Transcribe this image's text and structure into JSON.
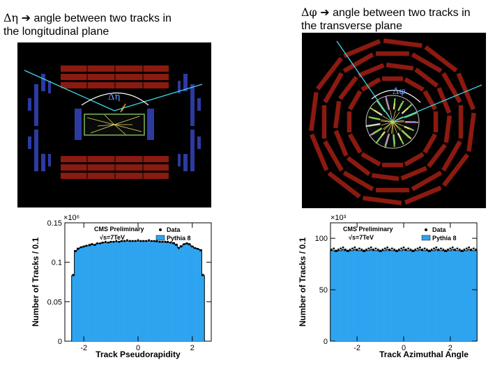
{
  "captions": {
    "left": {
      "symbol": "Δη",
      "arrow": "➔",
      "line1": "angle between two tracks in",
      "line2": "the longitudinal  plane"
    },
    "right": {
      "symbol": "Δφ",
      "arrow": "➔",
      "line1": "angle between two tracks in",
      "line2": "the transverse plane"
    }
  },
  "event_displays": {
    "left": {
      "angle_label": "Δη"
    },
    "right": {
      "angle_label": "Δφ"
    }
  },
  "chart_data": [
    {
      "type": "bar",
      "title": "",
      "xlabel": "Track Pseudorapidity",
      "ylabel": "Number of Tracks / 0.1",
      "y_multiplier_label": "×10⁶",
      "xlim": [
        -2.7,
        2.7
      ],
      "ylim": [
        0,
        0.15
      ],
      "x_ticks": [
        -2,
        0,
        2
      ],
      "y_ticks": [
        0,
        0.05,
        0.1,
        0.15
      ],
      "y_tick_labels": [
        "0",
        "0.05",
        "0.1",
        "0.15"
      ],
      "annotation_line1": "CMS Preliminary",
      "annotation_line2": "√s=7TeV",
      "legend_position": "top-right",
      "legend": [
        "Data",
        "Pythia 8"
      ],
      "x": [
        -2.4,
        -2.3,
        -2.2,
        -2.1,
        -2.0,
        -1.9,
        -1.8,
        -1.7,
        -1.6,
        -1.5,
        -1.4,
        -1.3,
        -1.2,
        -1.1,
        -1.0,
        -0.9,
        -0.8,
        -0.7,
        -0.6,
        -0.5,
        -0.4,
        -0.3,
        -0.2,
        -0.1,
        0.0,
        0.1,
        0.2,
        0.3,
        0.4,
        0.5,
        0.6,
        0.7,
        0.8,
        0.9,
        1.0,
        1.1,
        1.2,
        1.3,
        1.4,
        1.5,
        1.6,
        1.7,
        1.8,
        1.9,
        2.0,
        2.1,
        2.2,
        2.3,
        2.4
      ],
      "series": [
        {
          "name": "Pythia 8",
          "values": [
            0.083,
            0.115,
            0.118,
            0.119,
            0.12,
            0.121,
            0.121,
            0.123,
            0.122,
            0.124,
            0.124,
            0.125,
            0.125,
            0.125,
            0.126,
            0.126,
            0.126,
            0.126,
            0.127,
            0.127,
            0.127,
            0.127,
            0.127,
            0.127,
            0.127,
            0.127,
            0.127,
            0.127,
            0.127,
            0.127,
            0.127,
            0.126,
            0.126,
            0.126,
            0.126,
            0.125,
            0.125,
            0.125,
            0.123,
            0.119,
            0.121,
            0.123,
            0.124,
            0.122,
            0.12,
            0.118,
            0.117,
            0.116,
            0.083
          ]
        },
        {
          "name": "Data",
          "values": [
            0.084,
            0.114,
            0.117,
            0.119,
            0.12,
            0.121,
            0.122,
            0.123,
            0.122,
            0.124,
            0.124,
            0.125,
            0.126,
            0.125,
            0.126,
            0.126,
            0.127,
            0.126,
            0.127,
            0.127,
            0.128,
            0.127,
            0.127,
            0.127,
            0.128,
            0.127,
            0.127,
            0.127,
            0.128,
            0.127,
            0.127,
            0.127,
            0.126,
            0.126,
            0.126,
            0.126,
            0.125,
            0.124,
            0.122,
            0.118,
            0.12,
            0.123,
            0.124,
            0.123,
            0.12,
            0.118,
            0.117,
            0.115,
            0.084
          ]
        }
      ]
    },
    {
      "type": "bar",
      "title": "",
      "xlabel": "Track Azimuthal Angle",
      "ylabel": "Number of Tracks / 0.1",
      "y_multiplier_label": "×10³",
      "xlim": [
        -3.14159,
        3.14159
      ],
      "ylim": [
        0,
        115
      ],
      "x_ticks": [
        -2,
        0,
        2
      ],
      "y_ticks": [
        0,
        50,
        100
      ],
      "y_tick_labels": [
        "0",
        "50",
        "100"
      ],
      "annotation_line1": "CMS Preliminary",
      "annotation_line2": "√s=7TeV",
      "legend_position": "top-right",
      "legend": [
        "Data",
        "Pythia 8"
      ],
      "x": [
        -3.1,
        -3.0,
        -2.9,
        -2.8,
        -2.7,
        -2.6,
        -2.5,
        -2.4,
        -2.3,
        -2.2,
        -2.1,
        -2.0,
        -1.9,
        -1.8,
        -1.7,
        -1.6,
        -1.5,
        -1.4,
        -1.3,
        -1.2,
        -1.1,
        -1.0,
        -0.9,
        -0.8,
        -0.7,
        -0.6,
        -0.5,
        -0.4,
        -0.3,
        -0.2,
        -0.1,
        0.0,
        0.1,
        0.2,
        0.3,
        0.4,
        0.5,
        0.6,
        0.7,
        0.8,
        0.9,
        1.0,
        1.1,
        1.2,
        1.3,
        1.4,
        1.5,
        1.6,
        1.7,
        1.8,
        1.9,
        2.0,
        2.1,
        2.2,
        2.3,
        2.4,
        2.5,
        2.6,
        2.7,
        2.8,
        2.9,
        3.0,
        3.1
      ],
      "series": [
        {
          "name": "Pythia 8",
          "values": [
            88,
            88,
            87,
            88,
            88,
            89,
            88,
            87,
            88,
            88,
            89,
            88,
            88,
            88,
            87,
            88,
            88,
            89,
            88,
            88,
            88,
            87,
            88,
            88,
            89,
            88,
            88,
            88,
            87,
            88,
            88,
            89,
            88,
            88,
            88,
            87,
            88,
            88,
            89,
            88,
            88,
            88,
            87,
            88,
            88,
            89,
            88,
            88,
            88,
            87,
            88,
            88,
            89,
            88,
            88,
            88,
            87,
            88,
            88,
            89,
            88,
            88,
            88
          ]
        },
        {
          "name": "Data",
          "values": [
            89,
            90,
            88,
            89,
            90,
            91,
            89,
            88,
            89,
            90,
            91,
            89,
            90,
            89,
            88,
            89,
            90,
            91,
            89,
            90,
            89,
            88,
            89,
            90,
            91,
            89,
            90,
            89,
            88,
            89,
            90,
            91,
            89,
            90,
            89,
            88,
            89,
            90,
            91,
            89,
            90,
            89,
            88,
            89,
            90,
            91,
            89,
            90,
            89,
            88,
            89,
            90,
            91,
            89,
            90,
            89,
            88,
            89,
            90,
            91,
            89,
            90,
            89
          ]
        }
      ]
    }
  ]
}
